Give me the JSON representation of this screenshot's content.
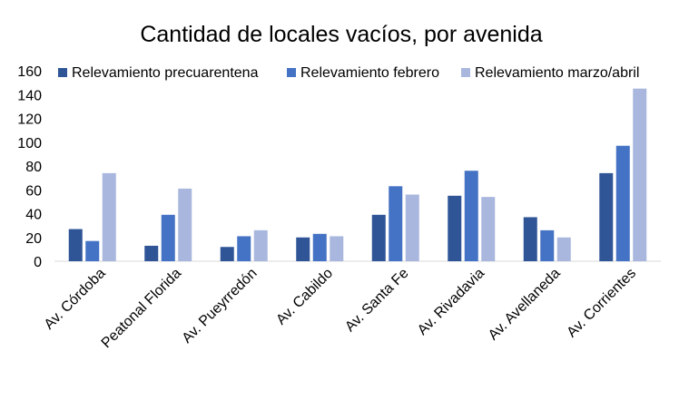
{
  "chart_data": {
    "type": "bar",
    "title": "Cantidad de locales vacíos, por avenida",
    "categories": [
      "Av. Córdoba",
      "Peatonal Florida",
      "Av. Pueyrredón",
      "Av. Cabildo",
      "Av. Santa Fe",
      "Av. Rivadavia",
      "Av. Avellaneda",
      "Av. Corrientes"
    ],
    "series": [
      {
        "name": "Relevamiento precuarentena",
        "color": "#2f5597",
        "values": [
          27,
          13,
          12,
          20,
          39,
          55,
          37,
          74
        ]
      },
      {
        "name": "Relevamiento febrero",
        "color": "#4472c4",
        "values": [
          17,
          39,
          21,
          23,
          63,
          76,
          26,
          97
        ]
      },
      {
        "name": "Relevamiento marzo/abril",
        "color": "#a9b7de",
        "values": [
          74,
          61,
          26,
          21,
          56,
          54,
          20,
          145
        ]
      }
    ],
    "ylim": [
      0,
      160
    ],
    "yticks": [
      0,
      20,
      40,
      60,
      80,
      100,
      120,
      140,
      160
    ],
    "grid": false,
    "legend": "top-right",
    "xlabel": "",
    "ylabel": ""
  }
}
